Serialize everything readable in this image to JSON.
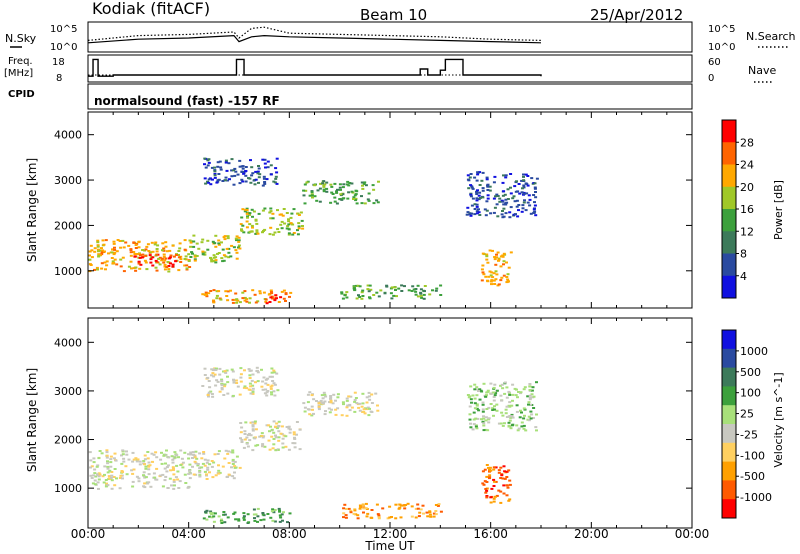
{
  "header": {
    "station": "Kodiak (fitACF)",
    "beam": "Beam 10",
    "date": "25/Apr/2012"
  },
  "sky_panel": {
    "left_label": "N.Sky",
    "right_label": "N.Search",
    "left_ticks": [
      "10^5",
      "10^0"
    ],
    "right_ticks": [
      "10^5",
      "10^0"
    ]
  },
  "freq_panel": {
    "left_label_1": "Freq.",
    "left_label_2": "[MHz]",
    "right_label": "Nave",
    "left_ticks": [
      "18",
      "8"
    ],
    "right_ticks": [
      "60",
      "0"
    ]
  },
  "cpid": {
    "label": "CPID",
    "text": "normalsound (fast) -157 RF"
  },
  "colors": {
    "power_scale": [
      "#1010e0",
      "#2a4aa0",
      "#3c7a5a",
      "#3ca03c",
      "#a0c828",
      "#ffa800",
      "#ff6400",
      "#ff0000"
    ],
    "velocity_scale": [
      "#ff0000",
      "#ff5a00",
      "#ffa000",
      "#ffd060",
      "#c8c8c0",
      "#a8e07a",
      "#3ca03c",
      "#3c7a5a",
      "#2a4aa0",
      "#1010e0"
    ]
  },
  "chart_data": [
    {
      "type": "line",
      "panel": "N.Sky / N.Search",
      "x": [
        0,
        2,
        4,
        5.8,
        6,
        6.5,
        7,
        8,
        10,
        12,
        14,
        16,
        18
      ],
      "series": [
        {
          "name": "N.Sky",
          "values": [
            0.3,
            0.45,
            0.5,
            0.6,
            0.35,
            0.55,
            0.6,
            0.55,
            0.5,
            0.45,
            0.4,
            0.35,
            0.3
          ]
        },
        {
          "name": "N.Search",
          "values": [
            0.4,
            0.6,
            0.65,
            0.75,
            0.5,
            0.9,
            0.95,
            0.7,
            0.65,
            0.6,
            0.55,
            0.45,
            0.4
          ]
        }
      ],
      "xlim": [
        0,
        24
      ]
    },
    {
      "type": "line",
      "panel": "Freq. / Nave",
      "x": [
        0,
        0.2,
        0.4,
        1,
        4,
        5.6,
        5.9,
        6.2,
        8,
        12,
        13.2,
        13.5,
        14,
        14.2,
        14.9,
        18
      ],
      "series": [
        {
          "name": "Freq.",
          "values": [
            10,
            17,
            10,
            10.5,
            10.5,
            10.5,
            17,
            10.5,
            10.5,
            10.5,
            13,
            10.5,
            12.5,
            17,
            10.5,
            10
          ]
        },
        {
          "name": "Nave",
          "values": [
            15,
            15,
            15,
            15,
            15,
            15,
            15,
            15,
            15,
            15,
            15,
            15,
            15,
            15,
            15,
            15
          ]
        }
      ],
      "ylim": [
        8,
        18
      ],
      "xlim": [
        0,
        24
      ]
    },
    {
      "type": "heatmap",
      "panel": "power",
      "ylabel": "Slant Range [km]",
      "colorbar_label": "Power [dB]",
      "colorbar_ticks": [
        "28",
        "24",
        "20",
        "16",
        "12",
        "8",
        "4"
      ],
      "y_ticks": [
        "4000",
        "3000",
        "2000",
        "1000"
      ],
      "ylim": [
        180,
        4500
      ],
      "xlim": [
        0,
        24
      ],
      "bands": [
        {
          "t0": 0.0,
          "t1": 4.0,
          "r0": 1000,
          "r1": 1700,
          "level": 5
        },
        {
          "t0": 1.8,
          "t1": 3.6,
          "r0": 1100,
          "r1": 1400,
          "level": 7
        },
        {
          "t0": 4.0,
          "t1": 6.0,
          "r0": 1200,
          "r1": 1800,
          "level": 4
        },
        {
          "t0": 6.0,
          "t1": 8.5,
          "r0": 1800,
          "r1": 2400,
          "level": 4
        },
        {
          "t0": 8.5,
          "t1": 11.5,
          "r0": 2500,
          "r1": 3000,
          "level": 3
        },
        {
          "t0": 4.5,
          "t1": 8.0,
          "r0": 300,
          "r1": 600,
          "level": 5
        },
        {
          "t0": 7.0,
          "t1": 7.6,
          "r0": 300,
          "r1": 500,
          "level": 7
        },
        {
          "t0": 10.0,
          "t1": 14.0,
          "r0": 400,
          "r1": 700,
          "level": 3
        },
        {
          "t0": 15.0,
          "t1": 17.8,
          "r0": 2200,
          "r1": 3200,
          "level": 1
        },
        {
          "t0": 15.6,
          "t1": 16.8,
          "r0": 700,
          "r1": 1500,
          "level": 5
        },
        {
          "t0": 4.5,
          "t1": 7.5,
          "r0": 2900,
          "r1": 3500,
          "level": 1
        }
      ]
    },
    {
      "type": "heatmap",
      "panel": "velocity",
      "ylabel": "Slant Range [km]",
      "colorbar_label": "Velocity [m s^-1]",
      "colorbar_ticks": [
        "1000",
        "500",
        "100",
        "25",
        "-25",
        "-100",
        "-500",
        "-1000"
      ],
      "y_ticks": [
        "4000",
        "3000",
        "2000",
        "1000"
      ],
      "ylim": [
        180,
        4500
      ],
      "xlim": [
        0,
        24
      ],
      "xlabel": "Time UT",
      "x_ticks": [
        "00:00",
        "04:00",
        "08:00",
        "12:00",
        "16:00",
        "20:00",
        "00:00"
      ],
      "bands": [
        {
          "t0": 0.0,
          "t1": 4.0,
          "r0": 1000,
          "r1": 1800,
          "level": 4
        },
        {
          "t0": 4.0,
          "t1": 6.0,
          "r0": 1200,
          "r1": 1800,
          "level": 4
        },
        {
          "t0": 6.0,
          "t1": 8.5,
          "r0": 1800,
          "r1": 2400,
          "level": 4
        },
        {
          "t0": 8.5,
          "t1": 11.5,
          "r0": 2500,
          "r1": 3000,
          "level": 4
        },
        {
          "t0": 4.5,
          "t1": 8.0,
          "r0": 300,
          "r1": 600,
          "level": 6
        },
        {
          "t0": 10.0,
          "t1": 14.0,
          "r0": 400,
          "r1": 700,
          "level": 2
        },
        {
          "t0": 15.0,
          "t1": 17.8,
          "r0": 2200,
          "r1": 3200,
          "level": 5
        },
        {
          "t0": 15.6,
          "t1": 16.8,
          "r0": 700,
          "r1": 1500,
          "level": 1
        },
        {
          "t0": 4.5,
          "t1": 7.5,
          "r0": 2900,
          "r1": 3500,
          "level": 4
        }
      ]
    }
  ]
}
